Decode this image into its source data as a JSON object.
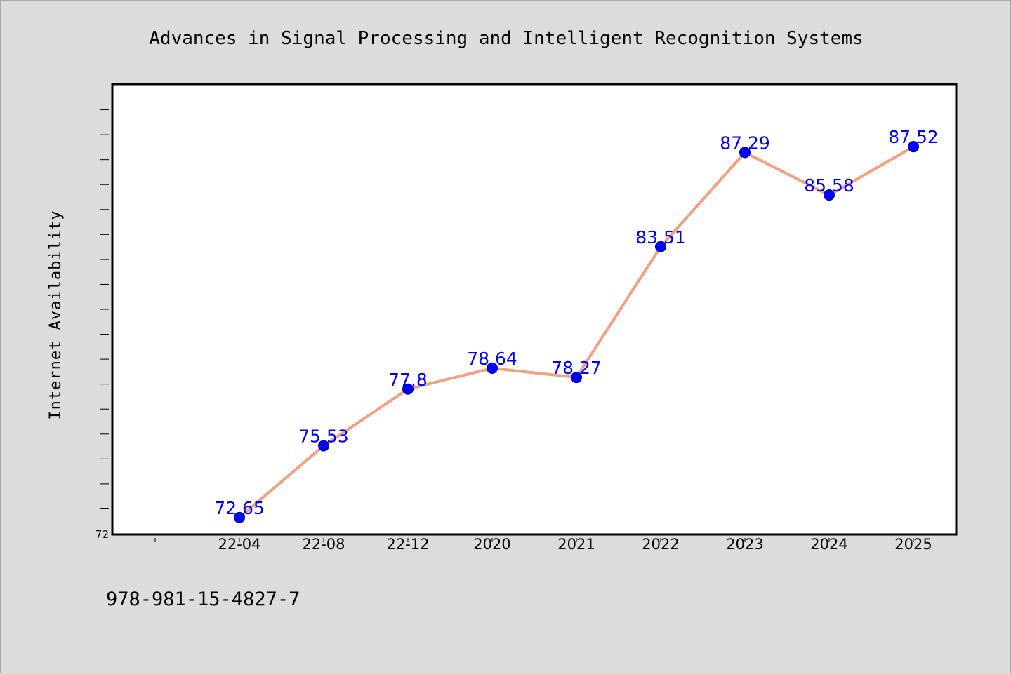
{
  "chart_data": {
    "type": "line",
    "title": "Advances in Signal Processing and Intelligent Recognition Systems",
    "xlabel": "",
    "ylabel": "Internet Availability",
    "categories": [
      "22-04",
      "22-08",
      "22-12",
      "2020",
      "2021",
      "2022",
      "2023",
      "2024",
      "2025"
    ],
    "series": [
      {
        "values": [
          72.65,
          75.53,
          77.8,
          78.64,
          78.27,
          83.51,
          87.29,
          85.58,
          87.52
        ],
        "labels": [
          "72.65",
          "75.53",
          "77.8",
          "78.64",
          "78.27",
          "83.51",
          "87.29",
          "85.58",
          "87.52"
        ]
      }
    ],
    "ylim": [
      72,
      90
    ],
    "yticks": [
      "72"
    ],
    "grid": false,
    "line_color": "#f4a07e",
    "marker_color": "#0000ff",
    "label_color": "#0000ff"
  },
  "footer": {
    "text": "978-981-15-4827-7"
  }
}
